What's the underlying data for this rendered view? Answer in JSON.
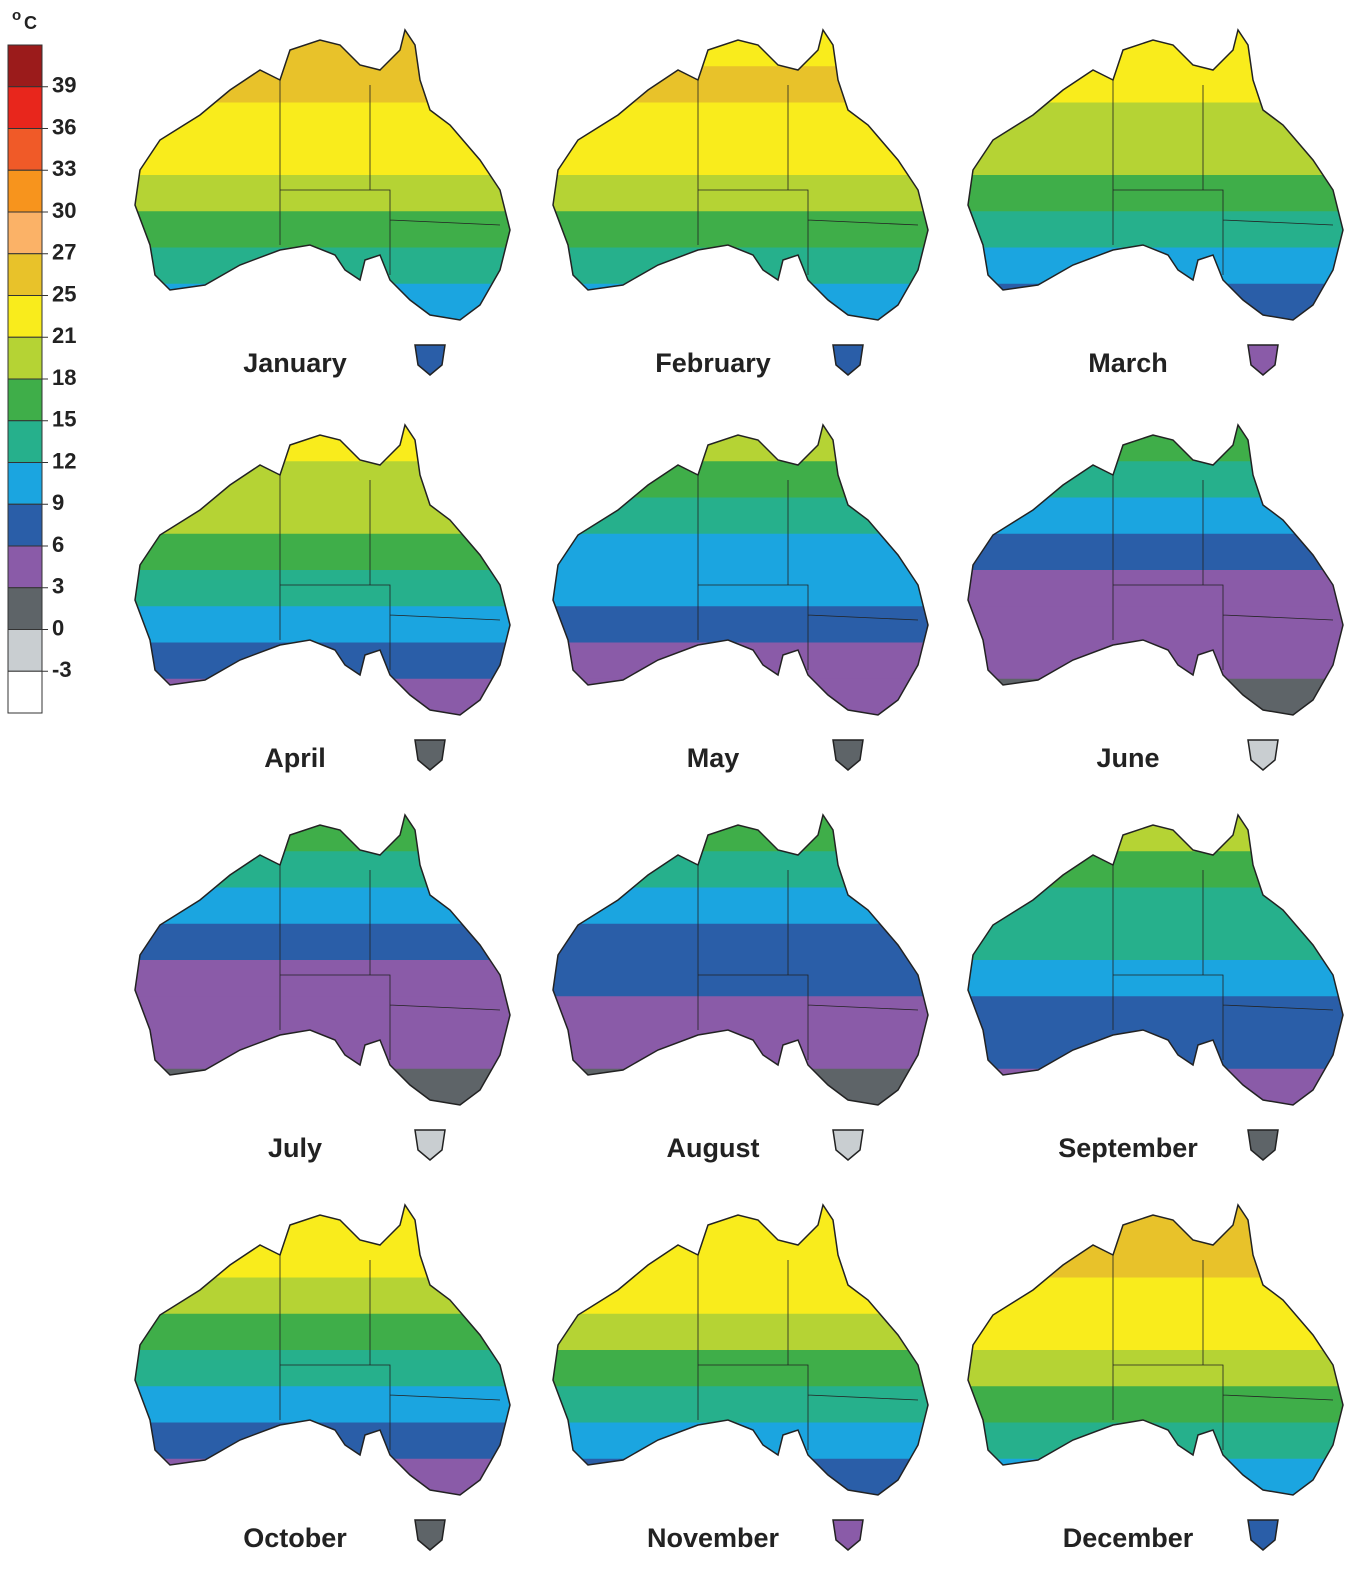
{
  "legend": {
    "unit_sup": "o",
    "unit": "C",
    "colors": [
      "#9b1b1b",
      "#e8261c",
      "#f05a28",
      "#f7941d",
      "#fbb267",
      "#e8c22a",
      "#f9ec1c",
      "#b5d334",
      "#3fae49",
      "#26b08c",
      "#1ba5e0",
      "#2a5ea8",
      "#8a5ba8",
      "#5e6468",
      "#c9ced1",
      "#ffffff"
    ],
    "labels": [
      39,
      36,
      33,
      30,
      27,
      25,
      21,
      18,
      15,
      12,
      9,
      6,
      3,
      0,
      -3
    ]
  },
  "maps": [
    {
      "label": "January"
    },
    {
      "label": "February"
    },
    {
      "label": "March"
    },
    {
      "label": "April"
    },
    {
      "label": "May"
    },
    {
      "label": "June"
    },
    {
      "label": "July"
    },
    {
      "label": "August"
    },
    {
      "label": "September"
    },
    {
      "label": "October"
    },
    {
      "label": "November"
    },
    {
      "label": "December"
    }
  ]
}
